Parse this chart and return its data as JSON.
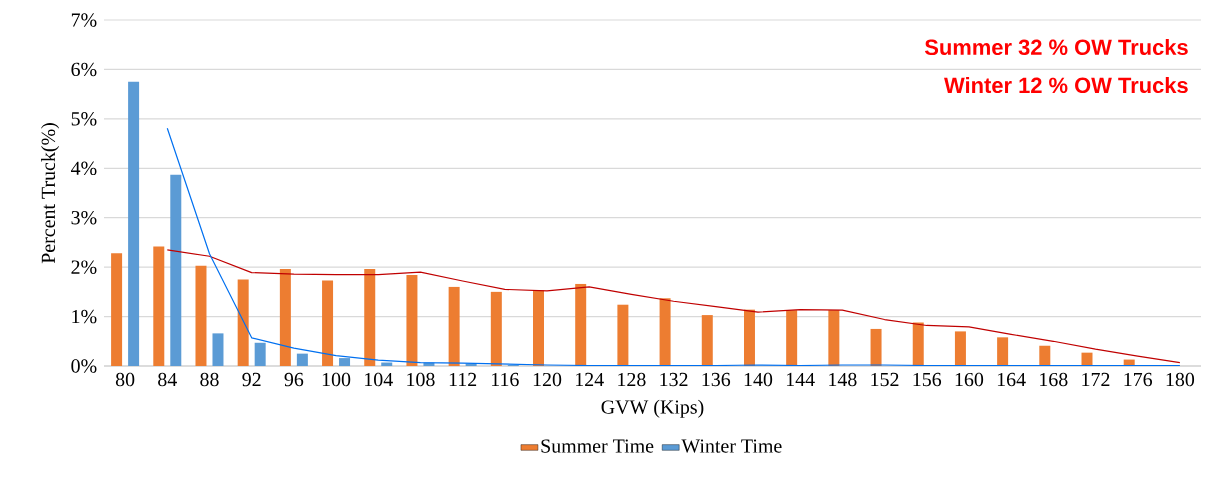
{
  "chart_data": {
    "type": "bar",
    "xlabel": "GVW (Kips)",
    "ylabel": "Percent Truck(%)",
    "annotations": [
      "Summer 32 % OW Trucks",
      "Winter  12 % OW Trucks"
    ],
    "categories": [
      "80",
      "84",
      "88",
      "92",
      "96",
      "100",
      "104",
      "108",
      "112",
      "116",
      "120",
      "124",
      "128",
      "132",
      "136",
      "140",
      "144",
      "148",
      "152",
      "156",
      "160",
      "164",
      "168",
      "172",
      "176",
      "180"
    ],
    "series": [
      {
        "name": "Summer Time",
        "color": "#ed7d31",
        "values": [
          2.28,
          2.42,
          2.03,
          1.75,
          1.96,
          1.73,
          1.96,
          1.84,
          1.6,
          1.5,
          1.53,
          1.66,
          1.24,
          1.37,
          1.03,
          1.14,
          1.13,
          1.13,
          0.75,
          0.88,
          0.7,
          0.58,
          0.41,
          0.27,
          0.13,
          0
        ]
      },
      {
        "name": "Winter Time",
        "color": "#5b9bd5",
        "values": [
          5.75,
          3.87,
          0.66,
          0.47,
          0.25,
          0.16,
          0.07,
          0.07,
          0.05,
          0.02,
          null,
          null,
          null,
          null,
          null,
          null,
          null,
          null,
          null,
          null,
          null,
          null,
          null,
          null,
          null,
          null
        ]
      },
      {
        "type": "line",
        "color": "#c00000",
        "values": [
          null,
          2.35,
          2.22,
          1.89,
          1.86,
          1.85,
          1.85,
          1.9,
          1.72,
          1.55,
          1.52,
          1.6,
          1.45,
          1.31,
          1.2,
          1.09,
          1.14,
          1.13,
          0.94,
          0.82,
          0.79,
          0.64,
          0.5,
          0.34,
          0.2,
          0.07
        ]
      },
      {
        "type": "line",
        "color": "#0070f0",
        "values": [
          null,
          4.81,
          2.27,
          0.57,
          0.36,
          0.21,
          0.12,
          0.07,
          0.06,
          0.04,
          0.02,
          0.01,
          0.01,
          0.01,
          0.01,
          0.02,
          0.01,
          0.02,
          0.02,
          0.01,
          0.01,
          0.01,
          0.01,
          0.01,
          0.01,
          0.01
        ]
      }
    ],
    "ylim": [
      0,
      7
    ],
    "yticks": [
      {
        "value": 0,
        "label": "0%"
      },
      {
        "value": 1,
        "label": "1%"
      },
      {
        "value": 2,
        "label": "2%"
      },
      {
        "value": 3,
        "label": "3%"
      },
      {
        "value": 4,
        "label": "4%"
      },
      {
        "value": 5,
        "label": "5%"
      },
      {
        "value": 6,
        "label": "6%"
      },
      {
        "value": 7,
        "label": "7%"
      }
    ],
    "grid": "y",
    "legend": "bottom"
  }
}
